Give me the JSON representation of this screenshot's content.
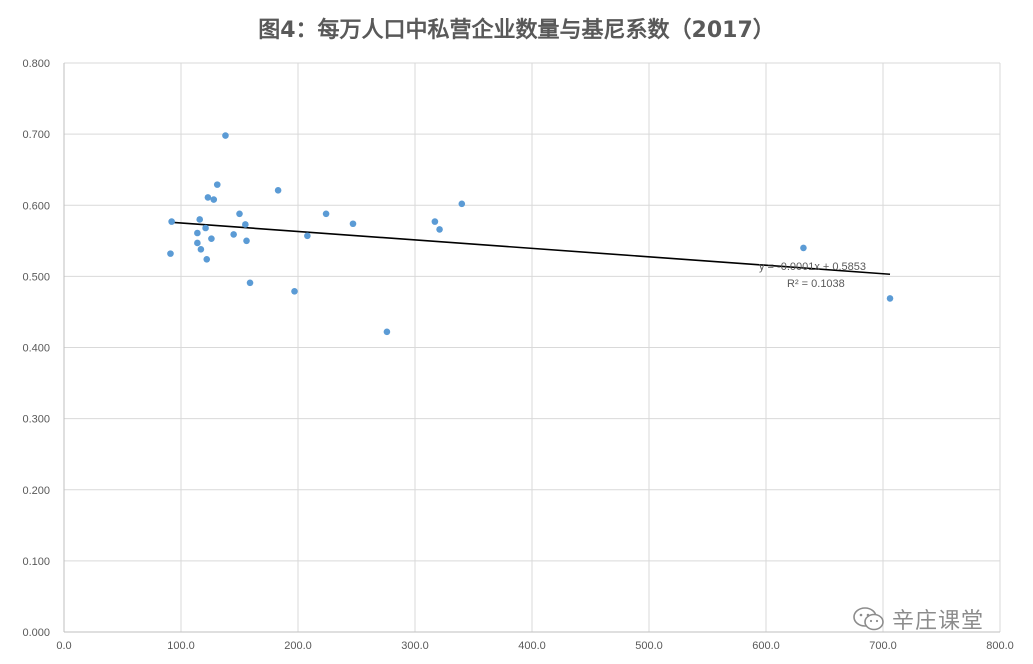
{
  "chart_data": {
    "type": "scatter",
    "title": "图4：每万人口中私营企业数量与基尼系数（2017）",
    "xlabel": "",
    "ylabel": "",
    "xlim": [
      0,
      800
    ],
    "ylim": [
      0,
      0.8
    ],
    "x_ticks": [
      "0.0",
      "100.0",
      "200.0",
      "300.0",
      "400.0",
      "500.0",
      "600.0",
      "700.0",
      "800.0"
    ],
    "y_ticks": [
      "0.000",
      "0.100",
      "0.200",
      "0.300",
      "0.400",
      "0.500",
      "0.600",
      "0.700",
      "0.800"
    ],
    "grid": true,
    "legend": "none",
    "point_color": "#5b9bd5",
    "trendline_color": "#000000",
    "points": [
      {
        "x": 91,
        "y": 0.532
      },
      {
        "x": 92,
        "y": 0.577
      },
      {
        "x": 114,
        "y": 0.561
      },
      {
        "x": 114,
        "y": 0.547
      },
      {
        "x": 116,
        "y": 0.58
      },
      {
        "x": 117,
        "y": 0.538
      },
      {
        "x": 121,
        "y": 0.568
      },
      {
        "x": 122,
        "y": 0.524
      },
      {
        "x": 123,
        "y": 0.611
      },
      {
        "x": 126,
        "y": 0.553
      },
      {
        "x": 128,
        "y": 0.608
      },
      {
        "x": 131,
        "y": 0.629
      },
      {
        "x": 138,
        "y": 0.698
      },
      {
        "x": 145,
        "y": 0.559
      },
      {
        "x": 150,
        "y": 0.588
      },
      {
        "x": 155,
        "y": 0.573
      },
      {
        "x": 156,
        "y": 0.55
      },
      {
        "x": 159,
        "y": 0.491
      },
      {
        "x": 183,
        "y": 0.621
      },
      {
        "x": 197,
        "y": 0.479
      },
      {
        "x": 208,
        "y": 0.557
      },
      {
        "x": 224,
        "y": 0.588
      },
      {
        "x": 247,
        "y": 0.574
      },
      {
        "x": 276,
        "y": 0.422
      },
      {
        "x": 317,
        "y": 0.577
      },
      {
        "x": 321,
        "y": 0.566
      },
      {
        "x": 340,
        "y": 0.602
      },
      {
        "x": 632,
        "y": 0.54
      },
      {
        "x": 706,
        "y": 0.469
      }
    ],
    "trendline": {
      "x": [
        92,
        706
      ],
      "y": [
        0.576,
        0.503
      ]
    },
    "trendline_equation": "y = -0.0001x + 0.5853",
    "trendline_r2": "R² = 0.1038"
  },
  "watermark": {
    "icon": "wechat-icon",
    "text": "辛庄课堂"
  }
}
